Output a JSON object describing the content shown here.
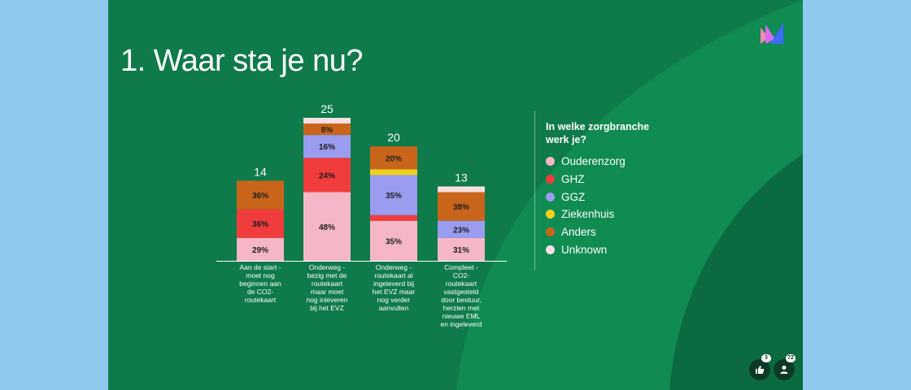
{
  "slide": {
    "title": "1. Waar sta je nu?"
  },
  "legend": {
    "title": "In welke zorgbranche werk je?",
    "items": [
      {
        "label": "Ouderenzorg",
        "color": "#f5b7c8"
      },
      {
        "label": "GHZ",
        "color": "#f03c3c"
      },
      {
        "label": "GGZ",
        "color": "#9a9cf0"
      },
      {
        "label": "Ziekenhuis",
        "color": "#f2d21c"
      },
      {
        "label": "Anders",
        "color": "#c9651b"
      },
      {
        "label": "Unknown",
        "color": "#f6e0e4"
      }
    ]
  },
  "reactions": {
    "likes": "3",
    "participants": "72"
  },
  "icons": {
    "logo": "mentimeter-logo-icon",
    "like": "thumbs-up-icon",
    "people": "person-icon"
  },
  "chart_data": {
    "type": "bar",
    "stacked": true,
    "categories": [
      "Aan de start - moet nog beginnen aan de CO2-routekaart",
      "Onderweg - bezig met de routekaart maar moet nog inleveren bij het EVZ",
      "Onderweg - routekaart al ingeleverd bij het EVZ maar nog verder aanvullen",
      "Compleet - CO2-routekaart vastgesteld door bestuur, herzien met nieuwe EML en ingeleverd"
    ],
    "category_lines": [
      [
        "Aan de start -",
        "moet nog",
        "beginnen aan",
        "de CO2-",
        "routekaart"
      ],
      [
        "Onderweg -",
        "bezig met de",
        "routekaart",
        "maar moet",
        "nog inleveren",
        "bij het EVZ"
      ],
      [
        "Onderweg -",
        "routekaart al",
        "ingeleverd bij",
        "het EVZ maar",
        "nog verder",
        "aanvullen"
      ],
      [
        "Compleet -",
        "CO2-",
        "routekaart",
        "vastgesteld",
        "door bestuur,",
        "herzien met",
        "nieuwe EML",
        "en ingeleverd"
      ]
    ],
    "totals": [
      14,
      25,
      20,
      13
    ],
    "series": [
      {
        "name": "Ouderenzorg",
        "values": [
          4,
          12,
          7,
          4
        ],
        "labels": [
          "29%",
          "48%",
          "35%",
          "31%"
        ]
      },
      {
        "name": "GHZ",
        "values": [
          5,
          6,
          1,
          0
        ],
        "labels": [
          "36%",
          "24%",
          "",
          ""
        ]
      },
      {
        "name": "GGZ",
        "values": [
          0,
          4,
          7,
          3
        ],
        "labels": [
          "",
          "16%",
          "35%",
          "23%"
        ]
      },
      {
        "name": "Ziekenhuis",
        "values": [
          0,
          0,
          1,
          0
        ],
        "labels": [
          "",
          "",
          "",
          ""
        ]
      },
      {
        "name": "Anders",
        "values": [
          5,
          2,
          4,
          5
        ],
        "labels": [
          "36%",
          "8%",
          "20%",
          "38%"
        ]
      },
      {
        "name": "Unknown",
        "values": [
          0,
          1,
          0,
          1
        ],
        "labels": [
          "",
          "",
          "",
          ""
        ]
      }
    ],
    "legend_position": "right",
    "grid": false
  }
}
